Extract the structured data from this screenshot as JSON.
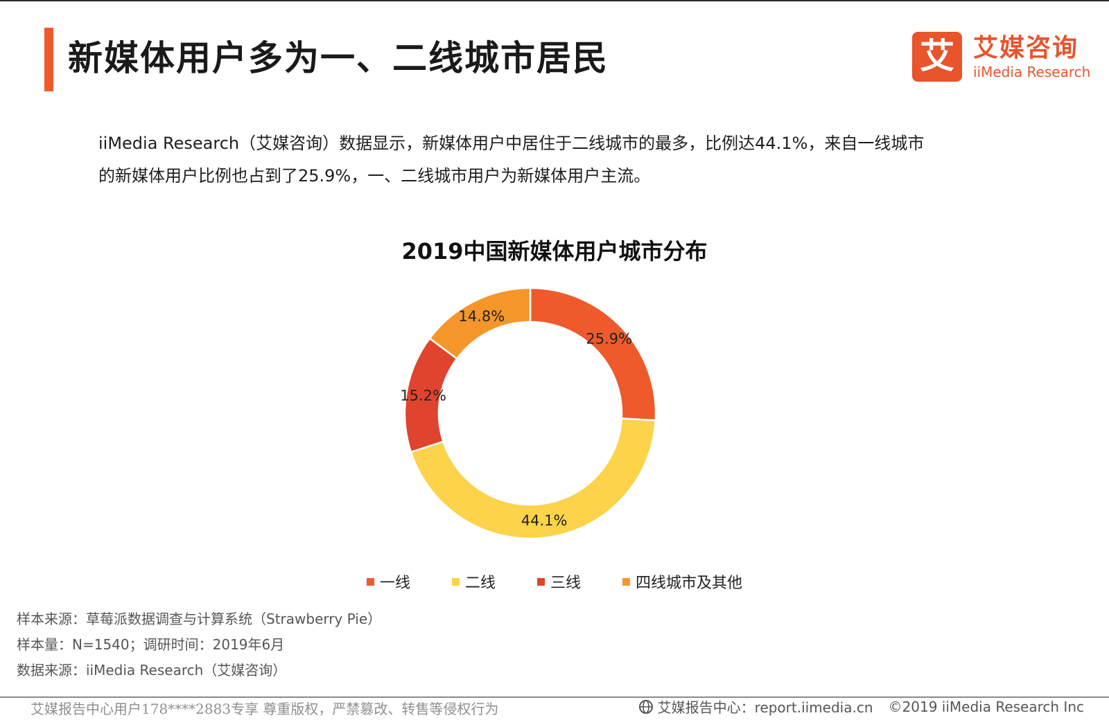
{
  "header": {
    "title": "新媒体用户多为一、二线城市居民",
    "accent_color": "#ee5a2c"
  },
  "logo": {
    "mark": "艾",
    "name_cn": "艾媒咨询",
    "name_en": "iiMedia Research",
    "color": "#e8542c"
  },
  "intro": {
    "line1": "iiMedia  Research（艾媒咨询）数据显示，新媒体用户中居住于二线城市的最多，比例达44.1%，来自一线城市",
    "line2": "的新媒体用户比例也占到了25.9%，一、二线城市用户为新媒体用户主流。"
  },
  "chart_data": {
    "type": "pie",
    "title": "2019中国新媒体用户城市分布",
    "donut": true,
    "categories": [
      "一线",
      "二线",
      "三线",
      "四线城市及其他"
    ],
    "values": [
      25.9,
      44.1,
      15.2,
      14.8
    ],
    "value_labels": [
      "25.9%",
      "44.1%",
      "15.2%",
      "14.8%"
    ],
    "colors": [
      "#ee5a2c",
      "#fcd34a",
      "#e0442e",
      "#f5962a"
    ],
    "legend_position": "bottom"
  },
  "notes": {
    "sample_source": "样本来源：草莓派数据调查与计算系统（Strawberry Pie）",
    "sample_size": "样本量：N=1540；调研时间：2019年6月",
    "data_source": "数据来源：iiMedia Research（艾媒咨询）"
  },
  "footer": {
    "watermark": "艾媒报告中心用户178****2883专享 尊重版权，严禁篡改、转售等侵权行为",
    "report_center": "艾媒报告中心：report.iimedia.cn",
    "copyright": "©2019  iiMedia Research  Inc",
    "icon": "globe-icon"
  }
}
